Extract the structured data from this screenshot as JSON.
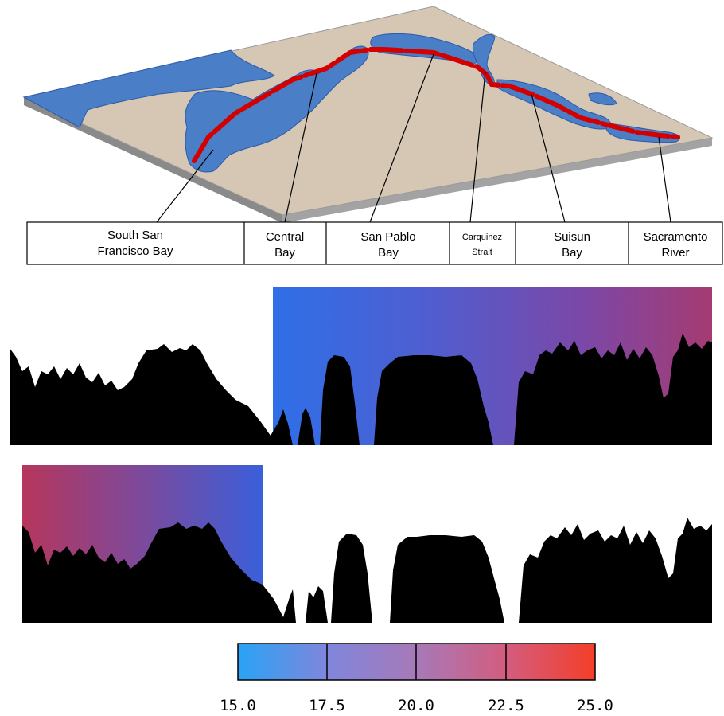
{
  "map": {
    "land_color": "#d6c7b5",
    "water_color": "#4a7ec7",
    "transect_color": "#d40000",
    "regions": [
      {
        "lines": [
          "South San",
          "Francisco Bay"
        ]
      },
      {
        "lines": [
          "Central",
          "Bay"
        ]
      },
      {
        "lines": [
          "San Pablo",
          "Bay"
        ]
      },
      {
        "lines": [
          "Carquinez",
          "Strait"
        ]
      },
      {
        "lines": [
          "Suisun",
          "Bay"
        ]
      },
      {
        "lines": [
          "Sacramento",
          "River"
        ]
      }
    ]
  },
  "profiles": {
    "terrain_color": "#000000",
    "gradient_blue": "#2f6fe8",
    "gradient_red": "#b6365c"
  },
  "colorbar": {
    "min": 15.0,
    "max": 25.0,
    "ticks": [
      "15.0",
      "17.5",
      "20.0",
      "22.5",
      "25.0"
    ],
    "colors": [
      "#29a3f5",
      "#7f86dc",
      "#a779b8",
      "#d35d7f",
      "#f43e29"
    ]
  }
}
